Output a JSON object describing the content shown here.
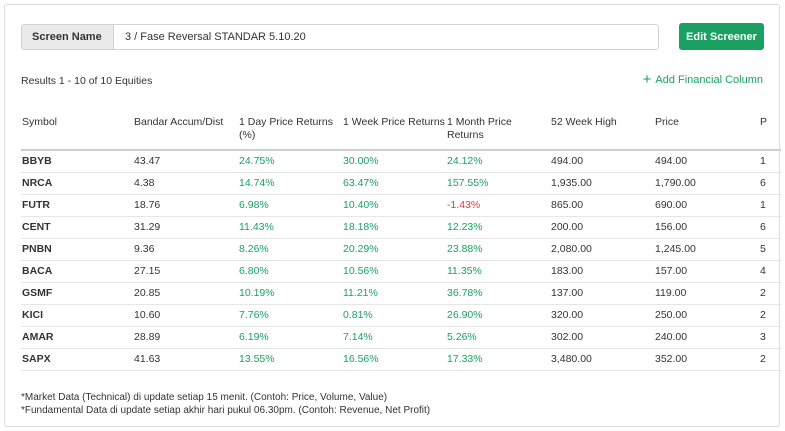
{
  "screen": {
    "label": "Screen Name",
    "value": "3 / Fase Reversal STANDAR 5.10.20"
  },
  "toolbar": {
    "edit_label": "Edit Screener",
    "results_text": "Results 1 - 10 of 10 Equities",
    "add_column_label": "Add Financial Column"
  },
  "table": {
    "headers": [
      "Symbol",
      "Bandar Accum/Dist",
      "1 Day Price Returns (%)",
      "1 Week Price Returns",
      "1 Month Price Returns",
      "52 Week High",
      "Price",
      "P"
    ],
    "rows": [
      {
        "symbol": "BBYB",
        "bandar": "43.47",
        "d1": "24.75%",
        "w1": "30.00%",
        "m1": "24.12%",
        "high52": "494.00",
        "price": "494.00",
        "p": "1"
      },
      {
        "symbol": "NRCA",
        "bandar": "4.38",
        "d1": "14.74%",
        "w1": "63.47%",
        "m1": "157.55%",
        "high52": "1,935.00",
        "price": "1,790.00",
        "p": "6"
      },
      {
        "symbol": "FUTR",
        "bandar": "18.76",
        "d1": "6.98%",
        "w1": "10.40%",
        "m1": "-1.43%",
        "high52": "865.00",
        "price": "690.00",
        "p": "1"
      },
      {
        "symbol": "CENT",
        "bandar": "31.29",
        "d1": "11.43%",
        "w1": "18.18%",
        "m1": "12.23%",
        "high52": "200.00",
        "price": "156.00",
        "p": "6"
      },
      {
        "symbol": "PNBN",
        "bandar": "9.36",
        "d1": "8.26%",
        "w1": "20.29%",
        "m1": "23.88%",
        "high52": "2,080.00",
        "price": "1,245.00",
        "p": "5"
      },
      {
        "symbol": "BACA",
        "bandar": "27.15",
        "d1": "6.80%",
        "w1": "10.56%",
        "m1": "11.35%",
        "high52": "183.00",
        "price": "157.00",
        "p": "4"
      },
      {
        "symbol": "GSMF",
        "bandar": "20.85",
        "d1": "10.19%",
        "w1": "11.21%",
        "m1": "36.78%",
        "high52": "137.00",
        "price": "119.00",
        "p": "2"
      },
      {
        "symbol": "KICI",
        "bandar": "10.60",
        "d1": "7.76%",
        "w1": "0.81%",
        "m1": "26.90%",
        "high52": "320.00",
        "price": "250.00",
        "p": "2"
      },
      {
        "symbol": "AMAR",
        "bandar": "28.89",
        "d1": "6.19%",
        "w1": "7.14%",
        "m1": "5.26%",
        "high52": "302.00",
        "price": "240.00",
        "p": "3"
      },
      {
        "symbol": "SAPX",
        "bandar": "41.63",
        "d1": "13.55%",
        "w1": "16.56%",
        "m1": "17.33%",
        "high52": "3,480.00",
        "price": "352.00",
        "p": "2"
      }
    ]
  },
  "footer": {
    "note1": "*Market Data (Technical) di update setiap 15 menit. (Contoh: Price, Volume, Value)",
    "note2": "*Fundamental Data di update setiap akhir hari pukul 06.30pm. (Contoh: Revenue, Net Profit)"
  },
  "colors": {
    "accent": "#1aa162",
    "negative": "#e0393e"
  }
}
